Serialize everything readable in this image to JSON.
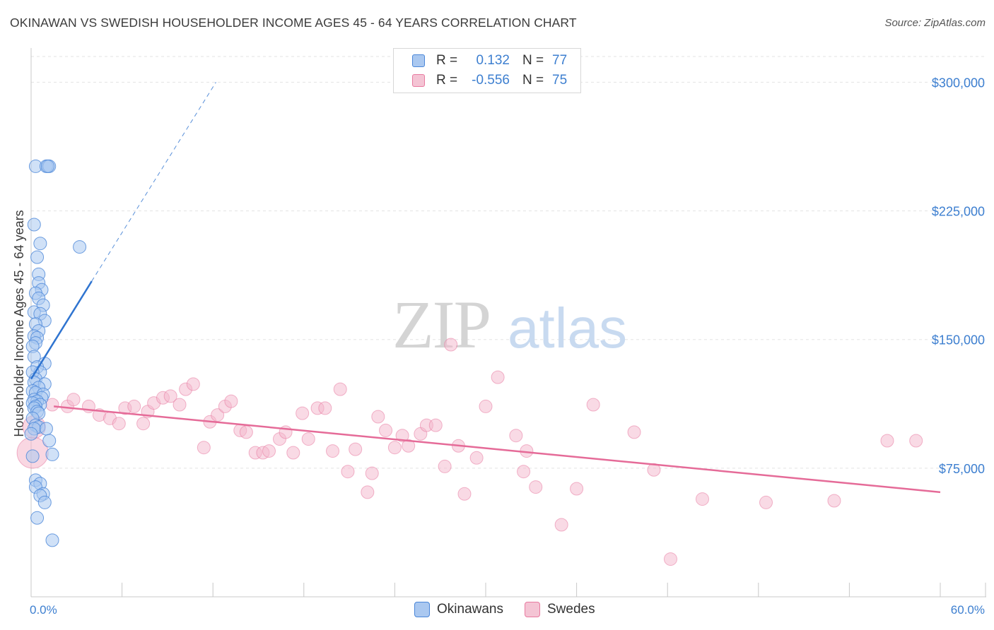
{
  "title": "OKINAWAN VS SWEDISH HOUSEHOLDER INCOME AGES 45 - 64 YEARS CORRELATION CHART",
  "source": "Source: ZipAtlas.com",
  "watermark": {
    "zip": "ZIP",
    "atlas": "atlas"
  },
  "colors": {
    "okinawans": "#4a86d8",
    "okinawans_fill": "#aac8f0",
    "okinawans_line": "#2f74d0",
    "swedes": "#e87aa0",
    "swedes_fill": "#f4b6cb",
    "swedes_line": "#e56b98"
  },
  "legend_top": {
    "rows": [
      {
        "label": "R =",
        "r": "0.132",
        "n_label": "N =",
        "n": "77"
      },
      {
        "label": "R =",
        "r": "-0.556",
        "n_label": "N =",
        "n": "75"
      }
    ]
  },
  "legend_bottom": {
    "items": [
      "Okinawans",
      "Swedes"
    ]
  },
  "chart_data": {
    "type": "scatter",
    "title": "OKINAWAN VS SWEDISH HOUSEHOLDER INCOME AGES 45 - 64 YEARS CORRELATION CHART",
    "xlabel": "",
    "ylabel": "Householder Income Ages 45 - 64 years",
    "xlim": [
      0,
      60
    ],
    "ylim": [
      0,
      315000
    ],
    "x_tick_labels": [
      "0.0%",
      "60.0%"
    ],
    "y_ticks": [
      75000,
      150000,
      225000,
      300000
    ],
    "y_tick_labels": [
      "$75,000",
      "$150,000",
      "$225,000",
      "$300,000"
    ],
    "grid": true,
    "series": [
      {
        "name": "Okinawans",
        "R": 0.132,
        "N": 77,
        "trend": {
          "x0": 0.0,
          "y0": 127000,
          "x1": 4.0,
          "y1": 184000,
          "dash_to_x": 12.2,
          "dash_to_y": 300000
        },
        "points": [
          [
            0.3,
            251000
          ],
          [
            1.0,
            251000
          ],
          [
            1.2,
            251000
          ],
          [
            1.1,
            251000
          ],
          [
            0.2,
            217000
          ],
          [
            0.6,
            206000
          ],
          [
            3.2,
            204000
          ],
          [
            0.4,
            198000
          ],
          [
            0.5,
            188000
          ],
          [
            0.5,
            183000
          ],
          [
            0.7,
            179000
          ],
          [
            0.3,
            177000
          ],
          [
            0.5,
            174000
          ],
          [
            0.8,
            170000
          ],
          [
            0.2,
            166000
          ],
          [
            0.6,
            165000
          ],
          [
            0.9,
            161000
          ],
          [
            0.3,
            159000
          ],
          [
            0.5,
            155000
          ],
          [
            0.2,
            152000
          ],
          [
            0.4,
            151000
          ],
          [
            0.3,
            148000
          ],
          [
            0.1,
            146000
          ],
          [
            0.2,
            140000
          ],
          [
            0.9,
            136000
          ],
          [
            0.4,
            134000
          ],
          [
            0.6,
            131000
          ],
          [
            0.1,
            131000
          ],
          [
            0.3,
            127000
          ],
          [
            0.2,
            125000
          ],
          [
            0.9,
            124000
          ],
          [
            0.5,
            122000
          ],
          [
            0.1,
            120000
          ],
          [
            0.3,
            119000
          ],
          [
            0.8,
            118000
          ],
          [
            0.7,
            116000
          ],
          [
            0.2,
            115000
          ],
          [
            0.4,
            114000
          ],
          [
            0.1,
            113000
          ],
          [
            0.6,
            112000
          ],
          [
            0.3,
            111000
          ],
          [
            0.2,
            110000
          ],
          [
            0.4,
            108000
          ],
          [
            0.5,
            107000
          ],
          [
            0.1,
            104000
          ],
          [
            0.3,
            100000
          ],
          [
            0.5,
            99000
          ],
          [
            0.2,
            98000
          ],
          [
            1.0,
            98000
          ],
          [
            0.0,
            95000
          ],
          [
            1.2,
            91000
          ],
          [
            1.4,
            83000
          ],
          [
            0.1,
            82000
          ],
          [
            0.3,
            68000
          ],
          [
            0.6,
            66000
          ],
          [
            0.3,
            64000
          ],
          [
            0.8,
            60000
          ],
          [
            0.6,
            59000
          ],
          [
            0.9,
            55000
          ],
          [
            0.4,
            46000
          ],
          [
            1.4,
            33000
          ]
        ]
      },
      {
        "name": "Swedes",
        "R": -0.556,
        "N": 75,
        "trend": {
          "x0": 1.5,
          "y0": 111000,
          "x1": 60.0,
          "y1": 61000
        },
        "points": [
          [
            0.1,
            84000
          ],
          [
            0.2,
            99000
          ],
          [
            1.4,
            112000
          ],
          [
            2.4,
            111000
          ],
          [
            2.8,
            115000
          ],
          [
            3.8,
            111000
          ],
          [
            4.5,
            106000
          ],
          [
            5.2,
            104000
          ],
          [
            5.8,
            101000
          ],
          [
            6.2,
            110000
          ],
          [
            6.8,
            111000
          ],
          [
            7.4,
            101000
          ],
          [
            7.7,
            108000
          ],
          [
            8.1,
            113000
          ],
          [
            8.7,
            116000
          ],
          [
            9.2,
            117000
          ],
          [
            9.8,
            112000
          ],
          [
            10.2,
            121000
          ],
          [
            10.7,
            124000
          ],
          [
            11.4,
            87000
          ],
          [
            11.8,
            102000
          ],
          [
            12.3,
            106000
          ],
          [
            12.8,
            111000
          ],
          [
            13.2,
            114000
          ],
          [
            13.8,
            97000
          ],
          [
            14.2,
            96000
          ],
          [
            14.8,
            84000
          ],
          [
            15.3,
            84000
          ],
          [
            15.7,
            85000
          ],
          [
            16.4,
            92000
          ],
          [
            16.8,
            96000
          ],
          [
            17.3,
            84000
          ],
          [
            17.9,
            107000
          ],
          [
            18.3,
            92000
          ],
          [
            18.9,
            110000
          ],
          [
            19.4,
            110000
          ],
          [
            19.9,
            85000
          ],
          [
            20.4,
            121000
          ],
          [
            20.9,
            73000
          ],
          [
            21.4,
            86000
          ],
          [
            22.2,
            61000
          ],
          [
            22.5,
            72000
          ],
          [
            22.9,
            105000
          ],
          [
            23.4,
            97000
          ],
          [
            24.0,
            87000
          ],
          [
            24.5,
            94000
          ],
          [
            24.9,
            88000
          ],
          [
            25.7,
            95000
          ],
          [
            26.1,
            100000
          ],
          [
            26.7,
            100000
          ],
          [
            27.3,
            76000
          ],
          [
            27.7,
            147000
          ],
          [
            28.2,
            88000
          ],
          [
            28.6,
            60000
          ],
          [
            29.4,
            81000
          ],
          [
            30.0,
            111000
          ],
          [
            30.8,
            128000
          ],
          [
            32.0,
            94000
          ],
          [
            32.5,
            73000
          ],
          [
            32.7,
            85000
          ],
          [
            33.3,
            64000
          ],
          [
            35.0,
            42000
          ],
          [
            36.0,
            63000
          ],
          [
            37.1,
            112000
          ],
          [
            39.8,
            96000
          ],
          [
            41.1,
            74000
          ],
          [
            42.2,
            22000
          ],
          [
            44.3,
            57000
          ],
          [
            48.5,
            55000
          ],
          [
            53.0,
            56000
          ],
          [
            56.5,
            91000
          ],
          [
            58.4,
            91000
          ]
        ]
      }
    ]
  }
}
